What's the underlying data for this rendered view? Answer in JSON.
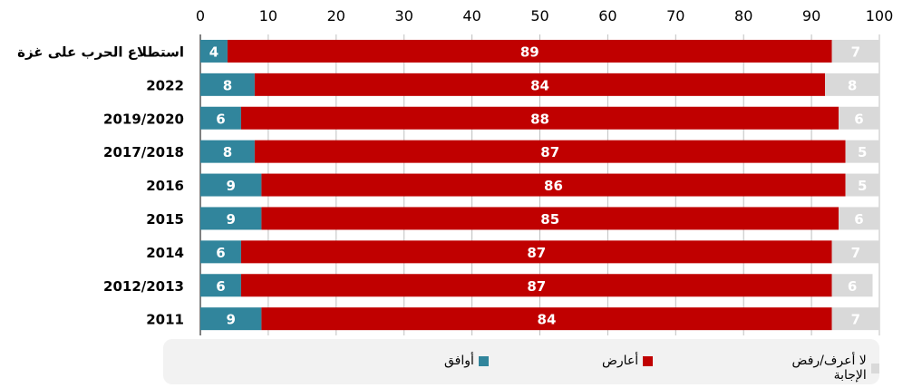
{
  "chart_data": {
    "type": "bar",
    "orientation": "horizontal",
    "stacked": true,
    "xlim": [
      0,
      100
    ],
    "x_ticks": [
      "0",
      "10",
      "20",
      "30",
      "40",
      "50",
      "60",
      "70",
      "80",
      "90",
      "100"
    ],
    "categories": [
      "استطلاع الحرب على غزة",
      "2022",
      "2019/2020",
      "2017/2018",
      "2016",
      "2015",
      "2014",
      "2012/2013",
      "2011"
    ],
    "series": [
      {
        "name": "أوافق",
        "color": "#31859c",
        "label_color": "#ffffff",
        "values": [
          4,
          8,
          6,
          8,
          9,
          9,
          6,
          6,
          9
        ]
      },
      {
        "name": "أعارض",
        "color": "#c00000",
        "label_color": "#ffffff",
        "values": [
          89,
          84,
          88,
          87,
          86,
          85,
          87,
          87,
          84
        ]
      },
      {
        "name": "لا أعرف/رفض الإجابة",
        "color": "#d9d9d9",
        "label_color": "#ffffff",
        "values": [
          7,
          8,
          6,
          5,
          5,
          6,
          7,
          6,
          7
        ]
      }
    ],
    "grid": true,
    "legend_position": "bottom"
  }
}
